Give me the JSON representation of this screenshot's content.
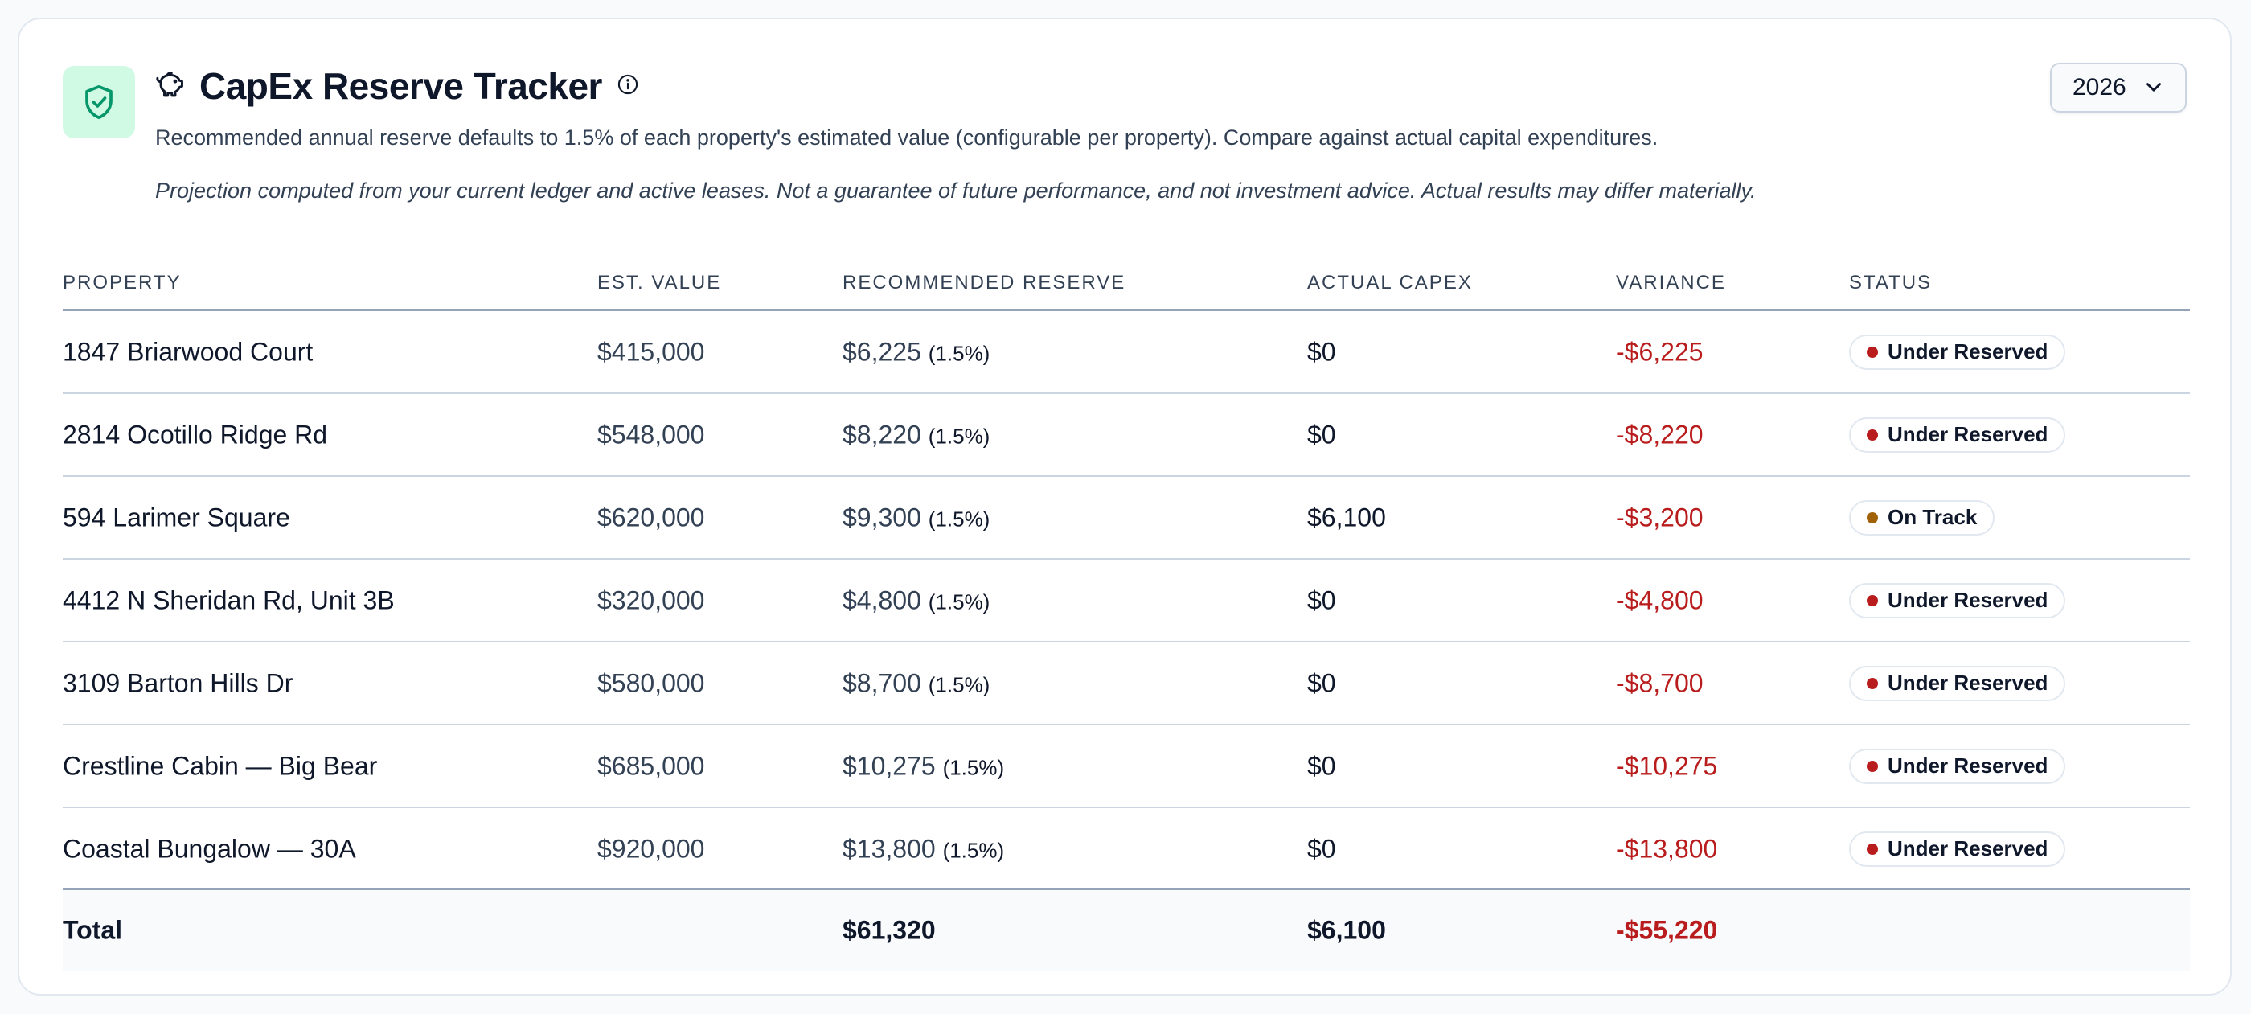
{
  "header": {
    "title": "CapEx Reserve Tracker",
    "subtitle": "Recommended annual reserve defaults to 1.5% of each property's estimated value (configurable per property). Compare against actual capital expenditures.",
    "disclaimer": "Projection computed from your current ledger and active leases. Not a guarantee of future performance, and not investment advice. Actual results may differ materially.",
    "icons": {
      "brand": "shield-check-icon",
      "title": "piggy-bank-icon",
      "info": "info-icon"
    }
  },
  "year_select": {
    "value": "2026",
    "icon": "chevron-down-icon"
  },
  "table": {
    "columns": [
      "PROPERTY",
      "EST. VALUE",
      "RECOMMENDED RESERVE",
      "ACTUAL CAPEX",
      "VARIANCE",
      "STATUS"
    ],
    "rows": [
      {
        "property": "1847 Briarwood Court",
        "est_value": "$415,000",
        "reserve": "$6,225",
        "reserve_pct": "(1.5%)",
        "actual": "$0",
        "variance": "-$6,225",
        "status": "Under Reserved",
        "status_color": "#b91c1c"
      },
      {
        "property": "2814 Ocotillo Ridge Rd",
        "est_value": "$548,000",
        "reserve": "$8,220",
        "reserve_pct": "(1.5%)",
        "actual": "$0",
        "variance": "-$8,220",
        "status": "Under Reserved",
        "status_color": "#b91c1c"
      },
      {
        "property": "594 Larimer Square",
        "est_value": "$620,000",
        "reserve": "$9,300",
        "reserve_pct": "(1.5%)",
        "actual": "$6,100",
        "variance": "-$3,200",
        "status": "On Track",
        "status_color": "#a16207"
      },
      {
        "property": "4412 N Sheridan Rd, Unit 3B",
        "est_value": "$320,000",
        "reserve": "$4,800",
        "reserve_pct": "(1.5%)",
        "actual": "$0",
        "variance": "-$4,800",
        "status": "Under Reserved",
        "status_color": "#b91c1c"
      },
      {
        "property": "3109 Barton Hills Dr",
        "est_value": "$580,000",
        "reserve": "$8,700",
        "reserve_pct": "(1.5%)",
        "actual": "$0",
        "variance": "-$8,700",
        "status": "Under Reserved",
        "status_color": "#b91c1c"
      },
      {
        "property": "Crestline Cabin — Big Bear",
        "est_value": "$685,000",
        "reserve": "$10,275",
        "reserve_pct": "(1.5%)",
        "actual": "$0",
        "variance": "-$10,275",
        "status": "Under Reserved",
        "status_color": "#b91c1c"
      },
      {
        "property": "Coastal Bungalow — 30A",
        "est_value": "$920,000",
        "reserve": "$13,800",
        "reserve_pct": "(1.5%)",
        "actual": "$0",
        "variance": "-$13,800",
        "status": "Under Reserved",
        "status_color": "#b91c1c"
      }
    ],
    "total": {
      "label": "Total",
      "reserve": "$61,320",
      "actual": "$6,100",
      "variance": "-$55,220"
    }
  },
  "colors": {
    "accent": "#059669",
    "accent_bg": "#d1fae5",
    "negative": "#b91c1c",
    "warning": "#a16207"
  }
}
